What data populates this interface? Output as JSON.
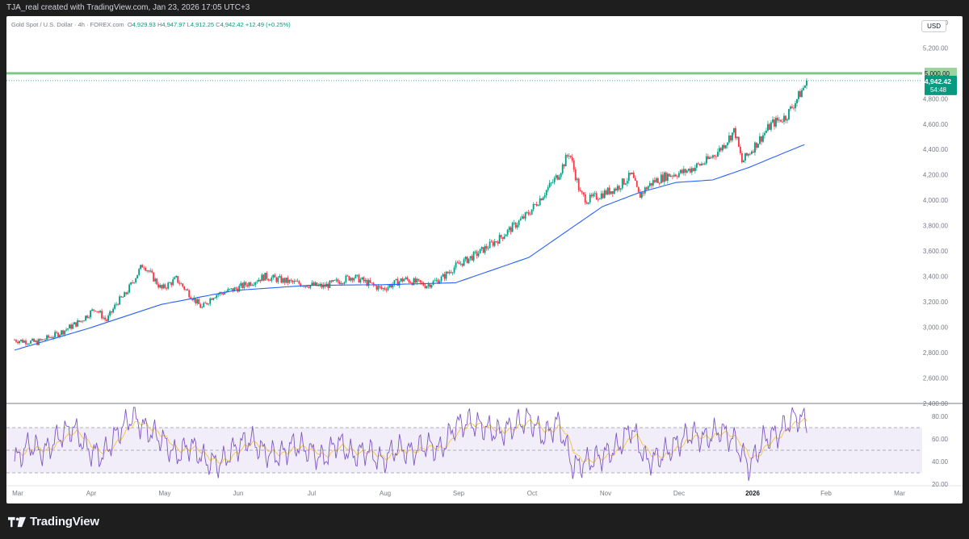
{
  "header": {
    "created_text": "TJA_real created with TradingView.com, Jan 23, 2026 17:05 UTC+3"
  },
  "symbol": {
    "name": "Gold Spot / U.S. Dollar · 4h · FOREX.com",
    "open_label": "O",
    "open": "4,929.93",
    "high_label": "H",
    "high": "4,947.97",
    "low_label": "L",
    "low": "4,912.25",
    "close_label": "C",
    "close": "4,942.42",
    "change": "+12.49 (+0.25%)"
  },
  "currency_button": "USD",
  "price_axis": {
    "ticks": [
      "5,400.00",
      "5,200.00",
      "4,800.00",
      "4,600.00",
      "4,400.00",
      "4,200.00",
      "4,000.00",
      "3,800.00",
      "3,600.00",
      "3,400.00",
      "3,200.00",
      "3,000.00",
      "2,800.00",
      "2,600.00",
      "2,400.00"
    ],
    "tick_values": [
      5400,
      5200,
      4800,
      4600,
      4400,
      4200,
      4000,
      3800,
      3600,
      3400,
      3200,
      3000,
      2800,
      2600,
      2400
    ],
    "level_label": "5,000.00",
    "price_label": "4,942.42",
    "countdown_label": "54:48"
  },
  "rsi_axis": {
    "ticks": [
      "80.00",
      "60.00",
      "40.00",
      "20.00"
    ],
    "tick_values": [
      80,
      60,
      40,
      20
    ]
  },
  "time_axis": {
    "labels": [
      "Mar",
      "Apr",
      "May",
      "Jun",
      "Jul",
      "Aug",
      "Sep",
      "Oct",
      "Nov",
      "Dec",
      "2026",
      "Feb",
      "Mar"
    ],
    "positions": [
      0,
      1,
      2,
      3,
      4,
      5,
      6,
      7,
      8,
      9,
      10,
      11,
      12
    ],
    "bold": [
      false,
      false,
      false,
      false,
      false,
      false,
      false,
      false,
      false,
      false,
      true,
      false,
      false
    ]
  },
  "footer": {
    "brand": "TradingView"
  },
  "colors": {
    "up": "#089981",
    "down": "#f23645",
    "ma": "#2962ff",
    "level": "#4caf50",
    "rsi": "#7e57c2",
    "rsi_signal": "#f5c242"
  },
  "chart_data": [
    {
      "type": "candlestick",
      "symbol": "XAUUSD",
      "timeframe": "4h",
      "x_unit": "months since Mar 1, 2025",
      "ylim": [
        2400,
        5450
      ],
      "grid": false,
      "closes_x": [
        0,
        0.3,
        0.6,
        0.9,
        1.0,
        1.1,
        1.25,
        1.4,
        1.5,
        1.6,
        1.75,
        2.0,
        2.2,
        2.4,
        2.55,
        2.7,
        3.0,
        3.4,
        3.8,
        4.2,
        4.6,
        5.0,
        5.3,
        5.6,
        5.8,
        6.0,
        6.3,
        6.6,
        6.8,
        7.0,
        7.2,
        7.4,
        7.55,
        7.7,
        7.8,
        8.0,
        8.2,
        8.4,
        8.5,
        8.6,
        8.7,
        8.9,
        9.1,
        9.4,
        9.6,
        9.8,
        9.9,
        10.1,
        10.3,
        10.5,
        10.65,
        10.75,
        10.8
      ],
      "closes_y": [
        2900,
        2880,
        2950,
        3050,
        3100,
        3150,
        3050,
        3200,
        3250,
        3350,
        3500,
        3300,
        3380,
        3250,
        3150,
        3250,
        3300,
        3400,
        3350,
        3320,
        3400,
        3300,
        3380,
        3330,
        3380,
        3480,
        3580,
        3700,
        3800,
        3900,
        4050,
        4200,
        4380,
        4050,
        4000,
        4050,
        4100,
        4200,
        4030,
        4100,
        4150,
        4200,
        4220,
        4300,
        4400,
        4550,
        4300,
        4450,
        4600,
        4660,
        4800,
        4900,
        4942
      ],
      "ma_x": [
        0,
        1,
        2,
        3,
        4,
        5,
        6,
        7,
        8,
        8.5,
        9,
        9.5,
        10,
        10.5,
        10.8
      ],
      "ma_y": [
        2820,
        2990,
        3180,
        3290,
        3330,
        3335,
        3350,
        3550,
        3950,
        4060,
        4140,
        4160,
        4260,
        4380,
        4450
      ],
      "horizontal_level": 5000,
      "last_price": 4942.42
    },
    {
      "type": "line",
      "name": "RSI",
      "ylim": [
        20,
        90
      ],
      "guides": [
        70,
        50,
        30
      ],
      "x_unit": "months since Mar 1, 2025",
      "x": [
        0,
        0.2,
        0.4,
        0.6,
        0.8,
        1.0,
        1.2,
        1.4,
        1.6,
        1.8,
        2.0,
        2.2,
        2.4,
        2.6,
        2.8,
        3.0,
        3.2,
        3.4,
        3.6,
        3.8,
        4.0,
        4.2,
        4.4,
        4.6,
        4.8,
        5.0,
        5.2,
        5.4,
        5.6,
        5.8,
        6.0,
        6.2,
        6.4,
        6.6,
        6.8,
        7.0,
        7.2,
        7.4,
        7.6,
        7.8,
        8.0,
        8.2,
        8.4,
        8.6,
        8.8,
        9.0,
        9.2,
        9.4,
        9.6,
        9.8,
        10.0,
        10.2,
        10.4,
        10.6,
        10.8
      ],
      "y": [
        40,
        55,
        48,
        62,
        70,
        50,
        45,
        65,
        80,
        68,
        60,
        45,
        55,
        40,
        38,
        52,
        60,
        48,
        45,
        55,
        50,
        42,
        58,
        45,
        50,
        40,
        52,
        48,
        55,
        50,
        72,
        75,
        70,
        65,
        72,
        78,
        62,
        75,
        35,
        40,
        45,
        52,
        70,
        40,
        45,
        55,
        65,
        60,
        68,
        58,
        35,
        60,
        65,
        80,
        75
      ]
    }
  ]
}
